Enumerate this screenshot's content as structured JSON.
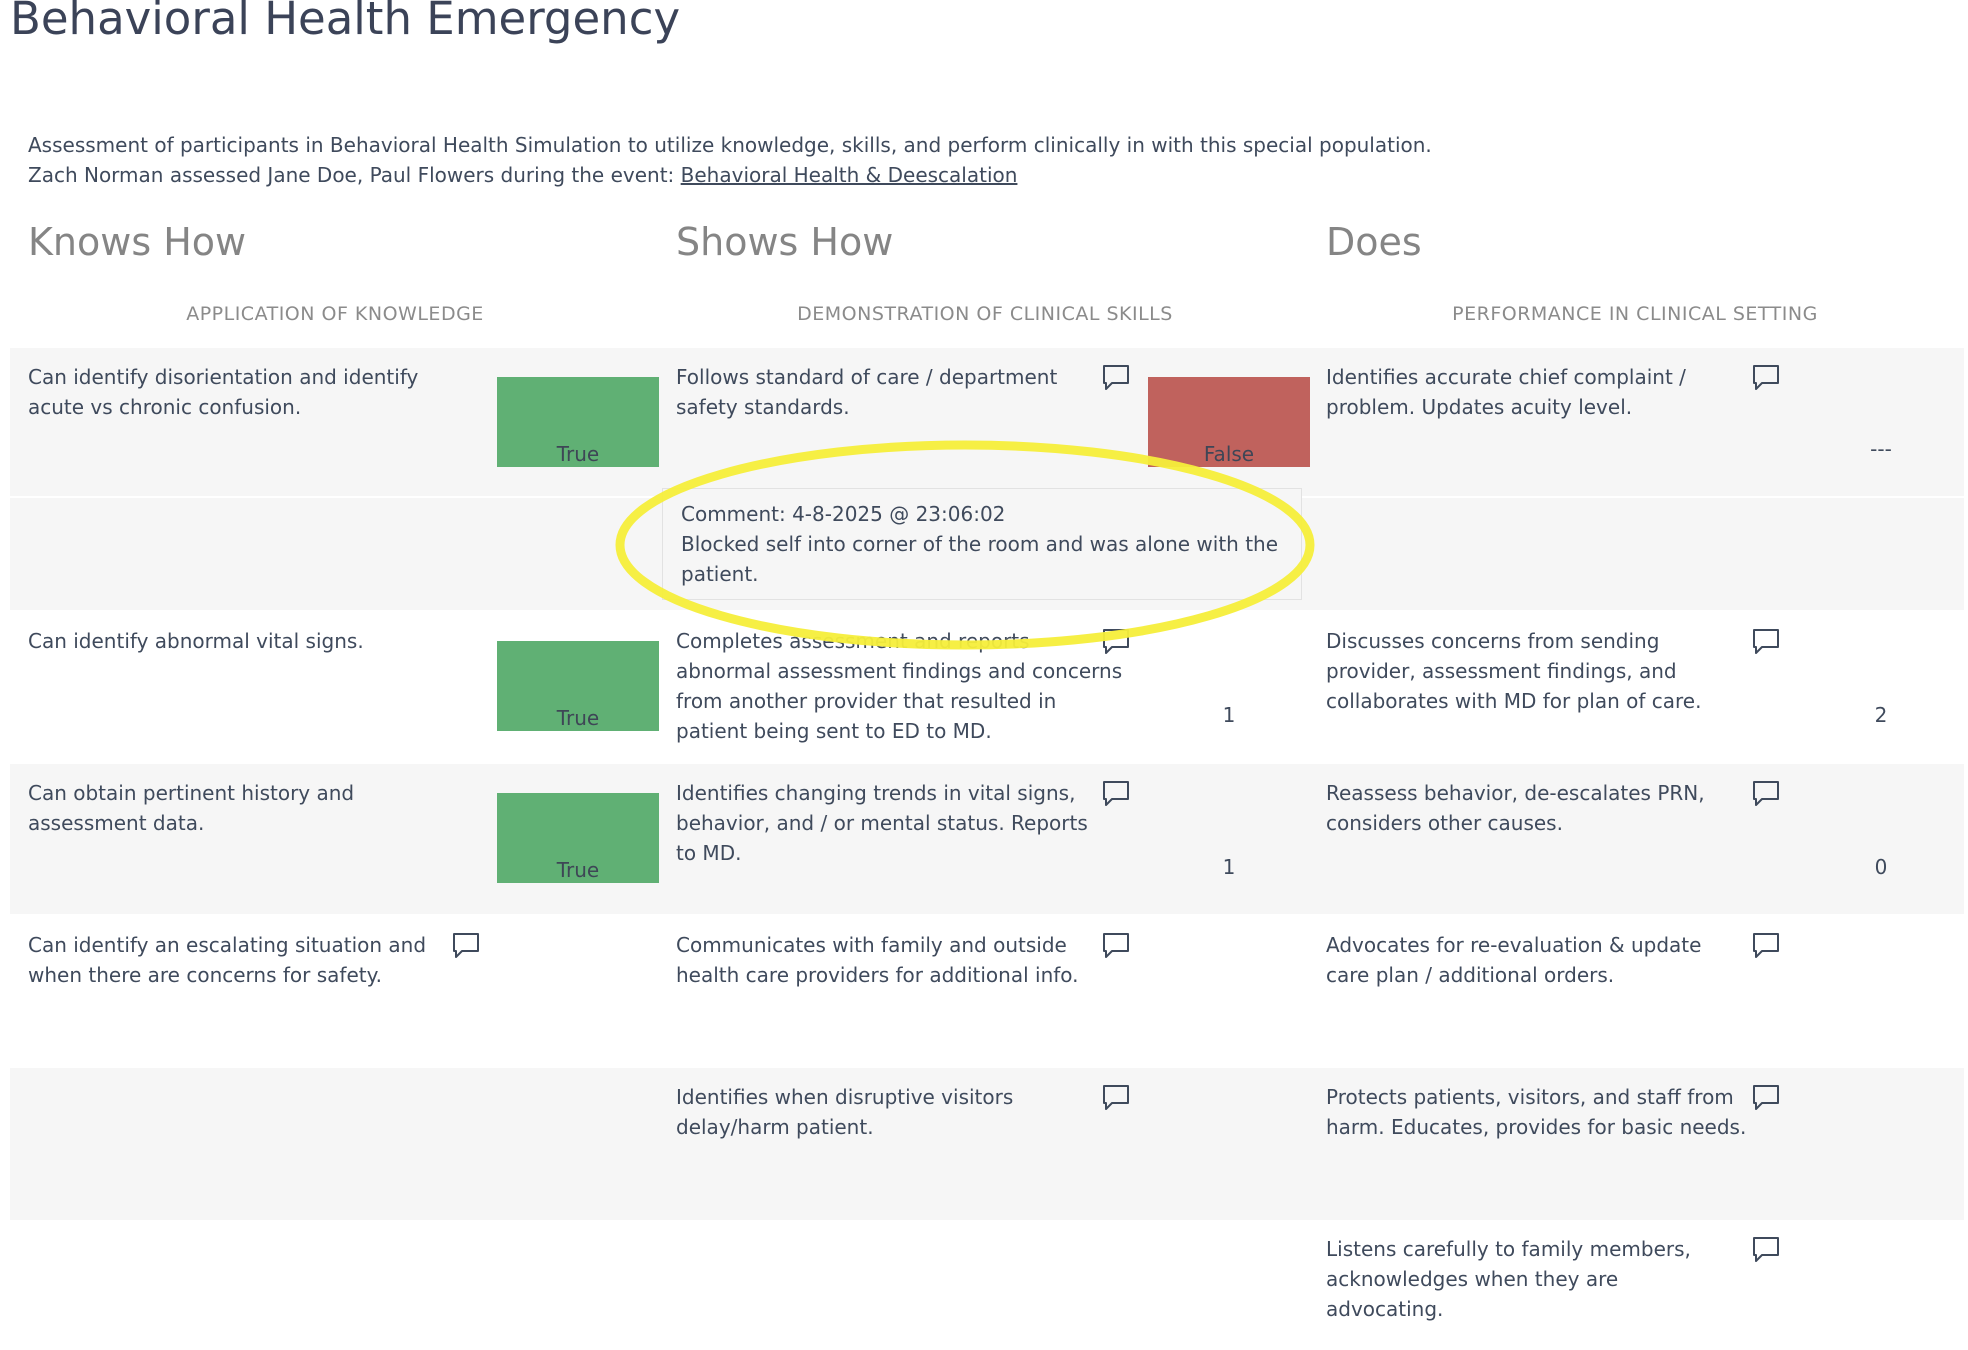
{
  "page": {
    "title": "Behavioral Health Emergency",
    "description_line1": "Assessment of participants in Behavioral Health Simulation to utilize knowledge, skills, and perform clinically in with this special population.",
    "description_prefix": "Zach Norman assessed Jane Doe, Paul Flowers during the event: ",
    "event_link": "Behavioral Health & Deescalation"
  },
  "columns": {
    "knows": {
      "title": "Knows How",
      "subtitle": "APPLICATION OF KNOWLEDGE"
    },
    "shows": {
      "title": "Shows How",
      "subtitle": "DEMONSTRATION OF CLINICAL SKILLS"
    },
    "does": {
      "title": "Does",
      "subtitle": "PERFORMANCE IN CLINICAL SETTING"
    }
  },
  "rows": [
    {
      "knows": "Can identify disorientation and identify acute vs chronic confusion.",
      "knows_result": "True",
      "shows": "Follows standard of care / department safety standards.",
      "shows_result": "False",
      "does": "Identifies accurate chief complaint / problem. Updates acuity level.",
      "does_result": "---"
    },
    {
      "knows": "Can identify abnormal vital signs.",
      "knows_result": "True",
      "shows": "Completes assessment and reports abnormal assessment findings and concerns from another provider that resulted in patient being sent to ED to MD.",
      "shows_result": "1",
      "does": "Discusses concerns from sending provider, assessment findings, and collaborates with MD for plan of care.",
      "does_result": "2"
    },
    {
      "knows": "Can obtain pertinent history and assessment data.",
      "knows_result": "True",
      "shows": "Identifies changing trends in vital signs, behavior, and / or mental status. Reports to MD.",
      "shows_result": "1",
      "does": "Reassess behavior, de-escalates PRN, considers other causes.",
      "does_result": "0"
    },
    {
      "knows": "Can identify an escalating situation and when there are concerns for safety.",
      "shows": "Communicates with family and outside health care providers for additional info.",
      "does": "Advocates for re-evaluation & update care plan / additional orders."
    },
    {
      "shows": "Identifies when disruptive visitors delay/harm patient.",
      "does": "Protects patients, visitors, and staff from harm. Educates, provides for basic needs."
    },
    {
      "does": "Listens carefully to family members, acknowledges when they are advocating."
    }
  ],
  "comment": {
    "header": "Comment: 4-8-2025 @ 23:06:02",
    "text": "Blocked self into corner of the room and was alone with the patient."
  },
  "colors": {
    "true_badge": "#60b074",
    "false_badge": "#c0625d",
    "highlight_ellipse": "#f5ee3a"
  },
  "icons": {
    "comment": "comment-bubble-icon"
  }
}
